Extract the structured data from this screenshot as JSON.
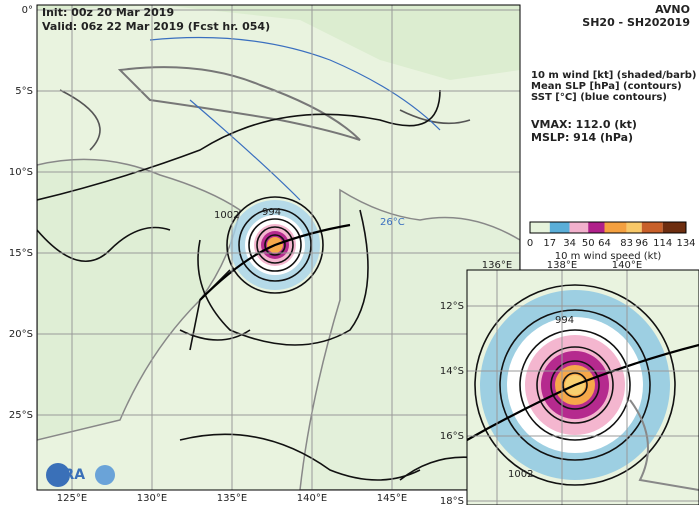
{
  "header": {
    "init": "Init: 00z 20 Mar 2019",
    "valid": "Valid: 06z 22 Mar 2019 (Fcst hr. 054)",
    "model": "AVNO",
    "storm": "SH20 - SH202019"
  },
  "legend": {
    "lines": [
      "10 m wind [kt] (shaded/barb)",
      "Mean SLP [hPa] (contours)",
      "SST [°C] (blue contours)"
    ],
    "vmax": "VMAX: 112.0 (kt)",
    "mslp": "MSLP:  914 (hPa)"
  },
  "colorbar": {
    "ticks": [
      0,
      17,
      34,
      50,
      64,
      83,
      96,
      114,
      134
    ],
    "label": "10 m wind speed (kt)"
  },
  "map": {
    "lat_labels": [
      "0°",
      "5°S",
      "10°S",
      "15°S",
      "20°S",
      "25°S"
    ],
    "lon_labels": [
      "125°E",
      "130°E",
      "135°E",
      "140°E",
      "145°E"
    ],
    "contour_labels": [
      "1002",
      "994",
      "26°C"
    ],
    "logo": "CIRA"
  },
  "inset": {
    "lon_labels": [
      "136°E",
      "138°E",
      "140°E"
    ],
    "lat_labels": [
      "12°S",
      "14°S",
      "16°S",
      "18°S"
    ],
    "contour_labels": [
      "994",
      "1002"
    ]
  }
}
